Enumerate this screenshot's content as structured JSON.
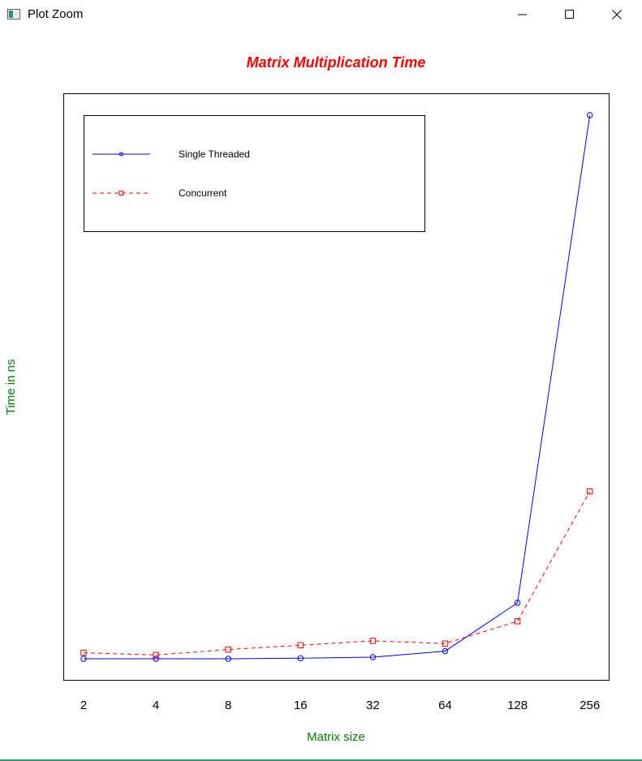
{
  "window": {
    "title": "Plot Zoom",
    "icon": "app-window-icon",
    "controls": [
      "minimize-icon",
      "maximize-icon",
      "close-icon"
    ]
  },
  "chart_data": {
    "type": "line",
    "title": "Matrix Multiplication Time",
    "xlabel": "Matrix size",
    "ylabel": "Time in ns",
    "categories": [
      "2",
      "4",
      "8",
      "16",
      "32",
      "64",
      "128",
      "256"
    ],
    "x_scale": "log2",
    "y_tick_labels_shown": false,
    "ylim": [
      0,
      100
    ],
    "grid": false,
    "legend_position": "top-left",
    "title_color": "#ff0000",
    "axis_label_color": "#008000",
    "series": [
      {
        "name": "Single Threaded",
        "color": "#0000ff",
        "line_style": "solid",
        "marker": "circle",
        "values": [
          0.0,
          0.0,
          0.0,
          0.1,
          0.3,
          1.4,
          10.3,
          100.0
        ]
      },
      {
        "name": "Concurrent",
        "color": "#ff0000",
        "line_style": "dashed",
        "marker": "square",
        "values": [
          1.1,
          0.7,
          1.7,
          2.5,
          3.3,
          2.8,
          6.9,
          30.8
        ]
      }
    ]
  }
}
